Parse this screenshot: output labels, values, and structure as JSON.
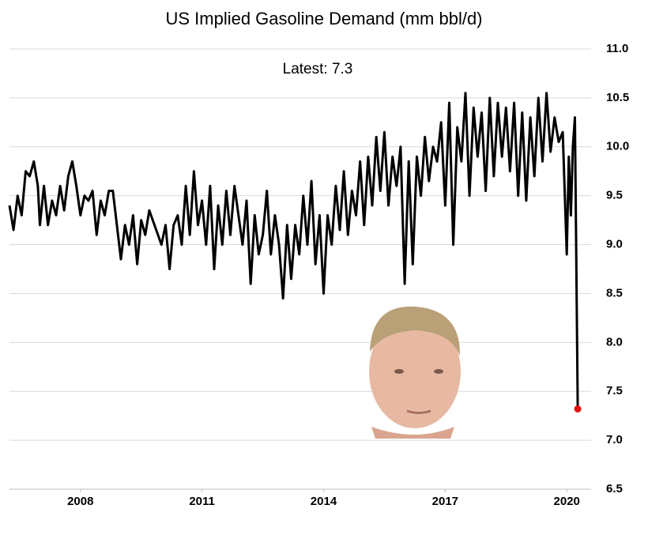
{
  "chart_data": {
    "type": "line",
    "title": "US Implied Gasoline Demand (mm bbl/d)",
    "annotation": "Latest:  7.3",
    "color": "#000000",
    "highlight_color": "#e01010",
    "grid": true,
    "xlim": [
      2006.25,
      2020.6
    ],
    "xticks": [
      2008,
      2011,
      2014,
      2017,
      2020
    ],
    "ylim": [
      6.5,
      11.0
    ],
    "yticks": [
      {
        "value": 6.5,
        "label": "6.5"
      },
      {
        "value": 7,
        "label": "7.0"
      },
      7.5,
      {
        "value": 8,
        "label": "8.0"
      },
      8.5,
      {
        "value": 9,
        "label": "9.0"
      },
      9.5,
      {
        "value": 10,
        "label": "10.0"
      },
      10.5,
      {
        "value": 11,
        "label": "11.0"
      }
    ],
    "x": [
      2006.25,
      2006.35,
      2006.45,
      2006.55,
      2006.65,
      2006.75,
      2006.85,
      2006.95,
      2007.0,
      2007.1,
      2007.2,
      2007.3,
      2007.4,
      2007.5,
      2007.6,
      2007.7,
      2007.8,
      2007.9,
      2008.0,
      2008.1,
      2008.2,
      2008.3,
      2008.4,
      2008.5,
      2008.6,
      2008.7,
      2008.8,
      2009.0,
      2009.1,
      2009.2,
      2009.3,
      2009.4,
      2009.5,
      2009.6,
      2009.7,
      2010.0,
      2010.1,
      2010.2,
      2010.3,
      2010.4,
      2010.5,
      2010.6,
      2010.7,
      2010.8,
      2010.9,
      2011.0,
      2011.1,
      2011.2,
      2011.3,
      2011.4,
      2011.5,
      2011.6,
      2011.7,
      2011.8,
      2011.9,
      2012.0,
      2012.1,
      2012.2,
      2012.3,
      2012.4,
      2012.5,
      2012.6,
      2012.7,
      2012.8,
      2012.9,
      2013.0,
      2013.1,
      2013.2,
      2013.3,
      2013.4,
      2013.5,
      2013.6,
      2013.7,
      2013.8,
      2013.9,
      2014.0,
      2014.1,
      2014.2,
      2014.3,
      2014.4,
      2014.5,
      2014.6,
      2014.7,
      2014.8,
      2014.9,
      2015.0,
      2015.1,
      2015.2,
      2015.3,
      2015.4,
      2015.5,
      2015.6,
      2015.7,
      2015.8,
      2015.9,
      2016.0,
      2016.1,
      2016.2,
      2016.3,
      2016.4,
      2016.5,
      2016.6,
      2016.7,
      2016.8,
      2016.9,
      2017.0,
      2017.1,
      2017.2,
      2017.3,
      2017.4,
      2017.5,
      2017.6,
      2017.7,
      2017.8,
      2017.9,
      2018.0,
      2018.1,
      2018.2,
      2018.3,
      2018.4,
      2018.5,
      2018.6,
      2018.7,
      2018.8,
      2018.9,
      2019.0,
      2019.1,
      2019.2,
      2019.3,
      2019.4,
      2019.5,
      2019.6,
      2019.7,
      2019.8,
      2019.9,
      2020.0,
      2020.05,
      2020.1,
      2020.15,
      2020.2,
      2020.27
    ],
    "values": [
      9.4,
      9.15,
      9.5,
      9.3,
      9.75,
      9.7,
      9.85,
      9.6,
      9.2,
      9.6,
      9.2,
      9.45,
      9.3,
      9.6,
      9.35,
      9.7,
      9.85,
      9.6,
      9.3,
      9.5,
      9.45,
      9.55,
      9.1,
      9.45,
      9.3,
      9.55,
      9.55,
      8.85,
      9.2,
      9.0,
      9.3,
      8.8,
      9.25,
      9.1,
      9.35,
      9.0,
      9.2,
      8.75,
      9.2,
      9.3,
      9.0,
      9.6,
      9.1,
      9.75,
      9.2,
      9.45,
      9.0,
      9.6,
      8.75,
      9.4,
      9.0,
      9.55,
      9.1,
      9.6,
      9.3,
      9.0,
      9.45,
      8.6,
      9.3,
      8.9,
      9.1,
      9.55,
      8.9,
      9.3,
      9.0,
      8.45,
      9.2,
      8.65,
      9.2,
      8.9,
      9.5,
      9.0,
      9.65,
      8.8,
      9.3,
      8.5,
      9.3,
      9.0,
      9.6,
      9.15,
      9.75,
      9.1,
      9.55,
      9.3,
      9.85,
      9.2,
      9.9,
      9.4,
      10.1,
      9.55,
      10.15,
      9.4,
      9.9,
      9.6,
      10.0,
      8.6,
      9.85,
      8.8,
      9.9,
      9.5,
      10.1,
      9.65,
      10.0,
      9.85,
      10.25,
      9.4,
      10.45,
      9.0,
      10.2,
      9.85,
      10.55,
      9.5,
      10.4,
      9.9,
      10.35,
      9.55,
      10.5,
      9.7,
      10.45,
      9.9,
      10.4,
      9.75,
      10.45,
      9.5,
      10.35,
      9.45,
      10.3,
      9.7,
      10.5,
      9.85,
      10.55,
      9.95,
      10.3,
      10.05,
      10.15,
      8.9,
      9.9,
      9.3,
      10.0,
      10.3,
      7.32
    ]
  }
}
